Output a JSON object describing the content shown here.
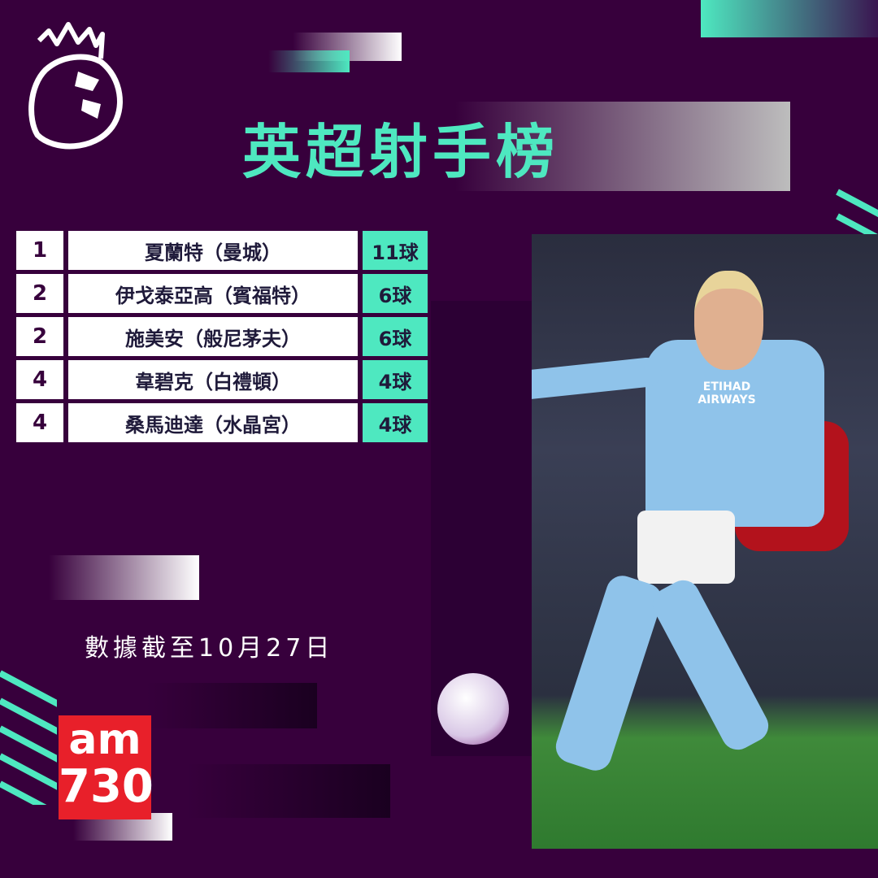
{
  "title": "英超射手榜",
  "colors": {
    "background": "#37003c",
    "accent": "#4ee8c0",
    "text_dark": "#1f1a3a"
  },
  "logo": {
    "name": "premier-league-lion",
    "icon": "lion-crown-icon"
  },
  "table": {
    "rows": [
      {
        "rank": "1",
        "player": "夏蘭特（曼城）",
        "goals": "11球"
      },
      {
        "rank": "2",
        "player": "伊戈泰亞高（賓福特）",
        "goals": "6球"
      },
      {
        "rank": "2",
        "player": "施美安（般尼茅夫）",
        "goals": "6球"
      },
      {
        "rank": "4",
        "player": "韋碧克（白禮頓）",
        "goals": "4球"
      },
      {
        "rank": "4",
        "player": "桑馬迪達（水晶宮）",
        "goals": "4球"
      }
    ]
  },
  "footnote": "數據截至10月27日",
  "brand": {
    "line1": "am",
    "line2": "730"
  },
  "photo": {
    "name": "player-action-photo",
    "shirt_text": "ETIHAD AIRWAYS"
  }
}
